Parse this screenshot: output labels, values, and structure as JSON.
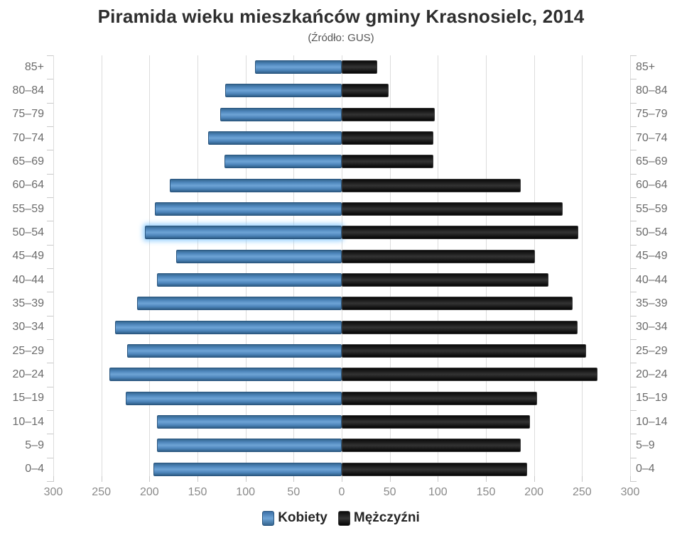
{
  "title": "Piramida wieku mieszkańców gminy Krasnosielc, 2014",
  "subtitle": "(Źródło: GUS)",
  "legend": {
    "women_label": "Kobiety",
    "men_label": "Mężczyźni"
  },
  "colors": {
    "women_bar": "#4b83b8",
    "women_border": "#2a567f",
    "men_bar": "#1d1d1d",
    "men_border": "#3a3a3a",
    "gridline": "#dcdcdc",
    "axis_text": "#8a8a8a",
    "category_text": "#6b6b6b",
    "title_text": "#2e2e2e",
    "highlight_glow": "#8ccdff"
  },
  "chart_data": {
    "type": "bar",
    "orientation": "horizontal-pyramid",
    "title": "Piramida wieku mieszkańców gminy Krasnosielc, 2014",
    "subtitle": "(Źródło: GUS)",
    "categories": [
      "85+",
      "80–84",
      "75–79",
      "70–74",
      "65–69",
      "60–64",
      "55–59",
      "50–54",
      "45–49",
      "40–44",
      "35–39",
      "30–34",
      "25–29",
      "20–24",
      "15–19",
      "10–14",
      "5–9",
      "0–4"
    ],
    "series": [
      {
        "name": "Kobiety",
        "side": "left",
        "color": "#4b83b8",
        "values": [
          90,
          121,
          126,
          139,
          122,
          179,
          194,
          205,
          172,
          192,
          213,
          236,
          223,
          242,
          225,
          192,
          192,
          196
        ]
      },
      {
        "name": "Mężczyźni",
        "side": "right",
        "color": "#1d1d1d",
        "values": [
          37,
          49,
          97,
          95,
          95,
          186,
          230,
          246,
          201,
          215,
          240,
          245,
          254,
          266,
          203,
          196,
          186,
          193
        ]
      }
    ],
    "x_ticks": [
      300,
      250,
      200,
      150,
      100,
      50,
      0,
      50,
      100,
      150,
      200,
      250,
      300
    ],
    "xlim": [
      0,
      300
    ],
    "grid": true,
    "legend_position": "bottom",
    "highlighted_category": "50–54"
  }
}
